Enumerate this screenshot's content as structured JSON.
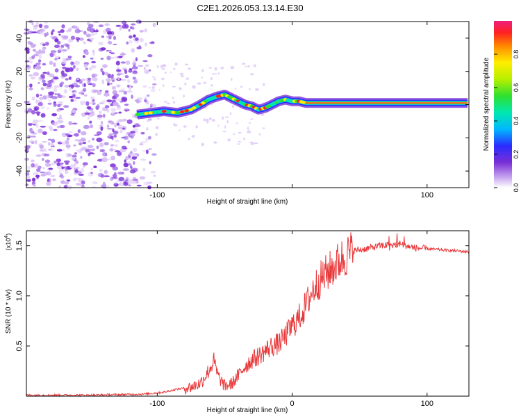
{
  "figure": {
    "title": "C2E1.2026.053.13.14.E30"
  },
  "chart_data": [
    {
      "type": "heatmap",
      "xlabel": "Height of straight line (km)",
      "ylabel": "Frequency (Hz)",
      "xlim": [
        -197,
        131
      ],
      "ylim": [
        -50,
        50
      ],
      "xticks": [
        -100,
        0,
        100
      ],
      "xtick_labels": [
        "-100",
        "",
        "100"
      ],
      "yticks": [
        -40,
        -20,
        0,
        20,
        40
      ],
      "ytick_labels": [
        "-40",
        "-20",
        "0",
        "20",
        "40"
      ],
      "colorbar": {
        "label": "Normalized spectral amplitude",
        "range": [
          0,
          1
        ],
        "ticks": [
          0.0,
          0.2,
          0.4,
          0.6,
          0.8
        ],
        "tick_labels": [
          "0.0",
          "0.2",
          "0.4",
          "0.6",
          "0.8"
        ]
      },
      "ridge_x": [
        -115,
        -105,
        -95,
        -85,
        -75,
        -68,
        -62,
        -55,
        -50,
        -45,
        -40,
        -35,
        -30,
        -25,
        -20,
        -15,
        -10,
        -5,
        0,
        5,
        10,
        130
      ],
      "ridge_y": [
        -6,
        -5,
        -4,
        -5,
        -3,
        0,
        3,
        5,
        6,
        4,
        2,
        0,
        -1,
        -3,
        -2,
        0,
        2,
        3,
        2,
        2,
        1,
        1
      ],
      "noise_region_x": [
        -197,
        -110
      ],
      "colors": {
        "signal": "#e0303a",
        "noise": "#7a2fd6"
      }
    },
    {
      "type": "line",
      "xlabel": "Height of straight line (km)",
      "ylabel": "SNR (10 * v/v)",
      "ylabel_unit": "(x10",
      "ylabel_unit_exp": "4",
      "ylabel_unit_close": ")",
      "xlim": [
        -197,
        131
      ],
      "ylim": [
        0,
        1.65
      ],
      "xticks": [
        -100,
        0,
        100
      ],
      "xtick_labels": [
        "-100",
        "0",
        "100"
      ],
      "yticks": [
        0.5,
        1.0,
        1.5
      ],
      "ytick_labels": [
        "0.5",
        "1.0",
        "1.5"
      ],
      "series": [
        {
          "name": "SNR",
          "color": "#e8383a",
          "x": [
            -197,
            -150,
            -110,
            -95,
            -85,
            -75,
            -68,
            -62,
            -58,
            -55,
            -50,
            -45,
            -40,
            -35,
            -30,
            -25,
            -20,
            -15,
            -10,
            -5,
            0,
            5,
            10,
            15,
            20,
            25,
            30,
            35,
            40,
            45,
            55,
            65,
            75,
            80,
            85,
            90,
            100,
            110,
            120,
            131
          ],
          "y": [
            0.01,
            0.01,
            0.02,
            0.04,
            0.07,
            0.09,
            0.13,
            0.25,
            0.35,
            0.2,
            0.1,
            0.12,
            0.2,
            0.3,
            0.36,
            0.4,
            0.45,
            0.5,
            0.52,
            0.6,
            0.7,
            0.78,
            0.9,
            1.05,
            1.15,
            1.22,
            1.28,
            1.35,
            1.4,
            1.45,
            1.47,
            1.5,
            1.51,
            1.52,
            1.5,
            1.48,
            1.47,
            1.46,
            1.45,
            1.44
          ]
        }
      ]
    }
  ]
}
